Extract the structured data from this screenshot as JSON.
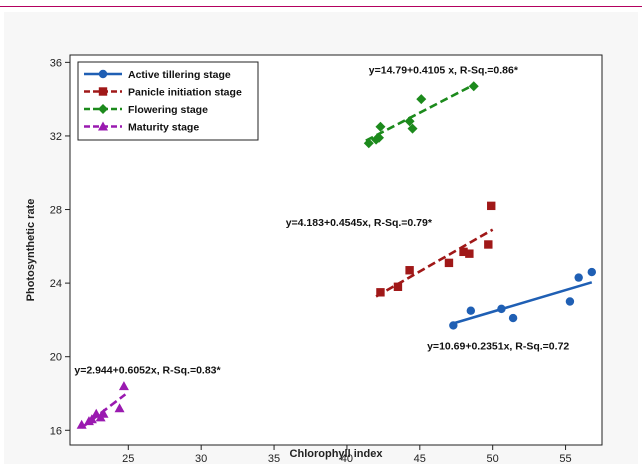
{
  "chart_data": {
    "type": "scatter",
    "xlabel": "Chlorophyll index",
    "ylabel": "Photosynthetic rate",
    "xlim": [
      21,
      57.5
    ],
    "ylim": [
      15.2,
      36.4
    ],
    "xticks": [
      25,
      30,
      35,
      40,
      45,
      50,
      55
    ],
    "yticks": [
      16,
      20,
      24,
      28,
      32,
      36
    ],
    "grid": false,
    "legend_position": "top-left",
    "series": [
      {
        "name": "Active tillering stage",
        "color": "#1f5fb4",
        "marker": "circle",
        "line_style": "solid",
        "x": [
          47.3,
          48.5,
          50.6,
          51.4,
          55.3,
          55.9,
          56.8
        ],
        "y": [
          21.7,
          22.5,
          22.6,
          22.1,
          23.0,
          24.3,
          24.6
        ],
        "fit": {
          "intercept": 10.69,
          "slope": 0.2351,
          "x_range": [
            47.3,
            56.8
          ]
        },
        "equation": "y=10.69+0.2351x, R-Sq.=0.72"
      },
      {
        "name": "Panicle initiation stage",
        "color": "#a01818",
        "marker": "square",
        "line_style": "dashed",
        "x": [
          42.3,
          43.5,
          44.3,
          47.0,
          48.0,
          48.4,
          49.7,
          49.9
        ],
        "y": [
          23.5,
          23.8,
          24.7,
          25.1,
          25.7,
          25.6,
          26.1,
          28.2
        ],
        "fit": {
          "intercept": 4.183,
          "slope": 0.4545,
          "x_range": [
            42.0,
            50.0
          ]
        },
        "equation": "y=4.183+0.4545x, R-Sq.=0.79*"
      },
      {
        "name": "Flowering stage",
        "color": "#1c8a1c",
        "marker": "diamond",
        "line_style": "dashed",
        "x": [
          41.5,
          42.0,
          42.2,
          42.3,
          44.3,
          44.5,
          45.1,
          48.7
        ],
        "y": [
          31.6,
          31.8,
          31.9,
          32.5,
          32.8,
          32.4,
          34.0,
          34.7
        ],
        "fit": {
          "intercept": 14.79,
          "slope": 0.4105,
          "x_range": [
            41.3,
            48.7
          ]
        },
        "equation": "y=14.79+0.4105 x, R-Sq.=0.86*"
      },
      {
        "name": "Maturity stage",
        "color": "#9a1ab0",
        "marker": "triangle",
        "line_style": "dashed",
        "x": [
          21.8,
          22.3,
          22.5,
          22.8,
          23.1,
          23.3,
          24.4,
          24.7
        ],
        "y": [
          16.3,
          16.5,
          16.6,
          16.9,
          16.7,
          16.9,
          17.2,
          18.4
        ],
        "fit": {
          "intercept": 2.944,
          "slope": 0.6052,
          "x_range": [
            21.8,
            24.8
          ]
        },
        "equation": "y=2.944+0.6052x, R-Sq.=0.83*"
      }
    ],
    "annotations": [
      {
        "text": "y=14.79+0.4105 x, R-Sq.=0.86*",
        "x": 41.5,
        "y": 35.4
      },
      {
        "text": "y=4.183+0.4545x, R-Sq.=0.79*",
        "x": 35.8,
        "y": 27.1
      },
      {
        "text": "y=10.69+0.2351x, R-Sq.=0.72",
        "x": 45.5,
        "y": 20.4
      },
      {
        "text": "y=2.944+0.6052x, R-Sq.=0.83*",
        "x": 21.3,
        "y": 19.1
      }
    ]
  }
}
